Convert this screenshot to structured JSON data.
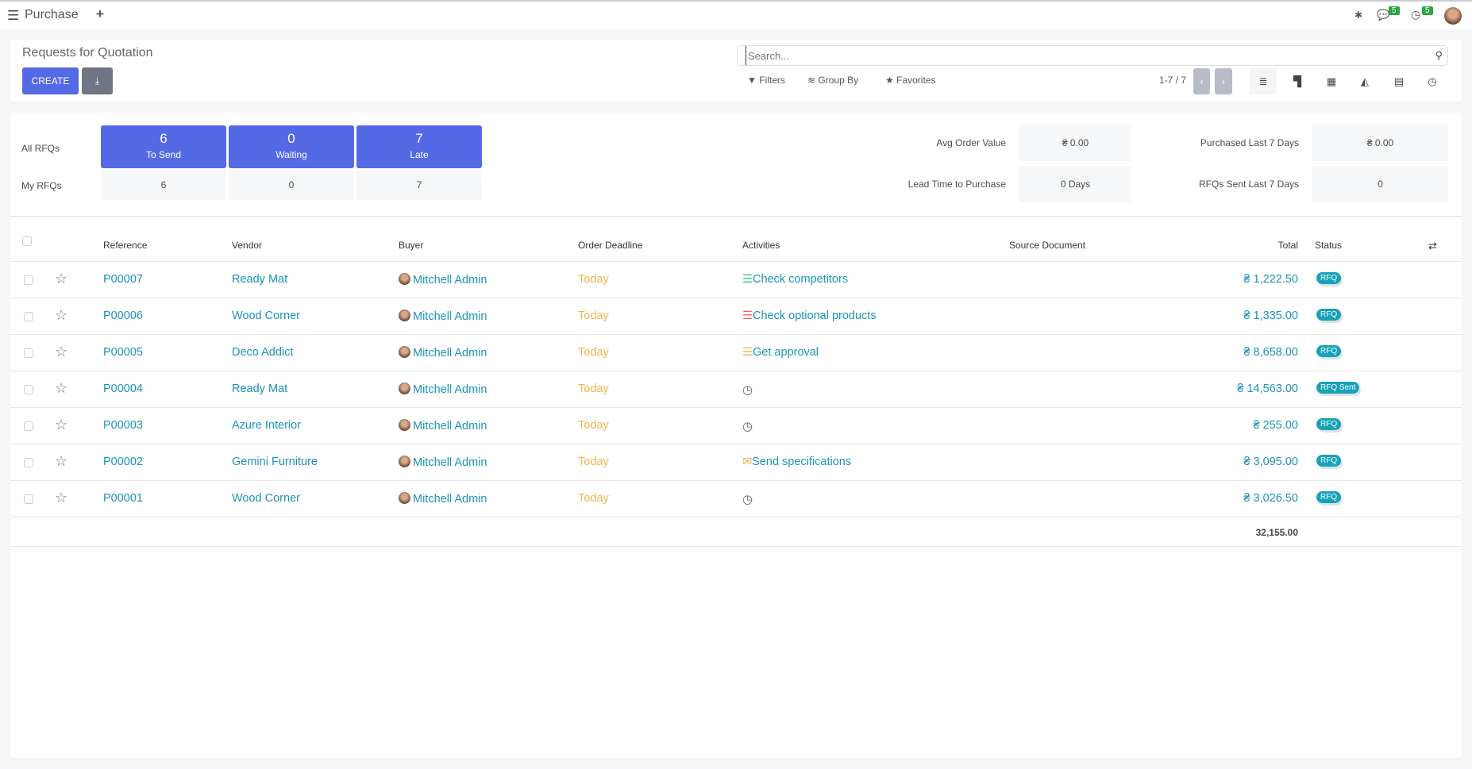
{
  "topbar": {
    "app_title": "Purchase",
    "messages_count": "5",
    "activities_count": "5"
  },
  "control_panel": {
    "title": "Requests for Quotation",
    "create_label": "CREATE",
    "search_placeholder": "Search...",
    "filters_label": "Filters",
    "groupby_label": "Group By",
    "favorites_label": "Favorites",
    "pager": "1-7 / 7",
    "active_view": "list"
  },
  "dashboard": {
    "all_label": "All RFQs",
    "my_label": "My RFQs",
    "tiles": [
      {
        "value": "6",
        "label": "To Send",
        "mine": "6"
      },
      {
        "value": "0",
        "label": "Waiting",
        "mine": "0"
      },
      {
        "value": "7",
        "label": "Late",
        "mine": "7"
      }
    ],
    "kpis": [
      {
        "label": "Avg Order Value",
        "value": "₴ 0.00"
      },
      {
        "label": "Purchased Last 7 Days",
        "value": "₴ 0.00"
      },
      {
        "label": "Lead Time to Purchase",
        "value": "0 Days"
      },
      {
        "label": "RFQs Sent Last 7 Days",
        "value": "0"
      }
    ]
  },
  "table": {
    "headers": {
      "reference": "Reference",
      "vendor": "Vendor",
      "buyer": "Buyer",
      "deadline": "Order Deadline",
      "activities": "Activities",
      "source": "Source Document",
      "total": "Total",
      "status": "Status"
    },
    "rows": [
      {
        "ref": "P00007",
        "vendor": "Ready Mat",
        "buyer": "Mitchell Admin",
        "deadline": "Today",
        "activity": "Check competitors",
        "activity_icon": "list-icon",
        "activity_color": "#28c76f",
        "total": "₴ 1,222.50",
        "status": "RFQ"
      },
      {
        "ref": "P00006",
        "vendor": "Wood Corner",
        "buyer": "Mitchell Admin",
        "deadline": "Today",
        "activity": "Check optional products",
        "activity_icon": "list-icon",
        "activity_color": "#f06060",
        "total": "₴ 1,335.00",
        "status": "RFQ"
      },
      {
        "ref": "P00005",
        "vendor": "Deco Addict",
        "buyer": "Mitchell Admin",
        "deadline": "Today",
        "activity": "Get approval",
        "activity_icon": "list-icon",
        "activity_color": "#f0ad4e",
        "total": "₴ 8,658.00",
        "status": "RFQ"
      },
      {
        "ref": "P00004",
        "vendor": "Ready Mat",
        "buyer": "Mitchell Admin",
        "deadline": "Today",
        "activity": "",
        "activity_icon": "clock-icon",
        "activity_color": "#666666",
        "total": "₴ 14,563.00",
        "status": "RFQ Sent"
      },
      {
        "ref": "P00003",
        "vendor": "Azure Interior",
        "buyer": "Mitchell Admin",
        "deadline": "Today",
        "activity": "",
        "activity_icon": "clock-icon",
        "activity_color": "#666666",
        "total": "₴ 255.00",
        "status": "RFQ"
      },
      {
        "ref": "P00002",
        "vendor": "Gemini Furniture",
        "buyer": "Mitchell Admin",
        "deadline": "Today",
        "activity": "Send specifications",
        "activity_icon": "envelope-icon",
        "activity_color": "#f0ad4e",
        "total": "₴ 3,095.00",
        "status": "RFQ"
      },
      {
        "ref": "P00001",
        "vendor": "Wood Corner",
        "buyer": "Mitchell Admin",
        "deadline": "Today",
        "activity": "",
        "activity_icon": "clock-icon",
        "activity_color": "#666666",
        "total": "₴ 3,026.50",
        "status": "RFQ"
      }
    ],
    "grand_total": "32,155.00"
  }
}
